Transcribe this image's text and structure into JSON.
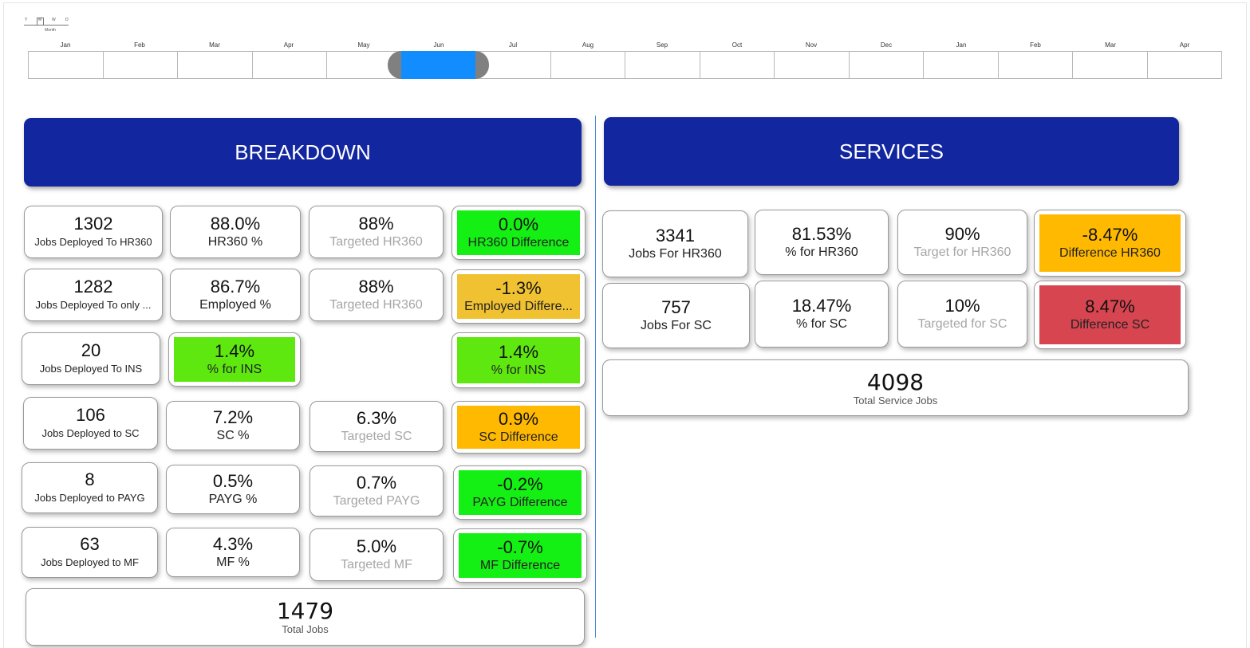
{
  "timeline": {
    "granularity": [
      "Y",
      "M",
      "W",
      "D"
    ],
    "granularity_caption": "Month",
    "months": [
      "Jan",
      "Feb",
      "Mar",
      "Apr",
      "May",
      "Jun",
      "Jul",
      "Aug",
      "Sep",
      "Oct",
      "Nov",
      "Dec",
      "Jan",
      "Feb",
      "Mar",
      "Apr"
    ],
    "selected_month": "Jun"
  },
  "breakdown": {
    "title": "BREAKDOWN",
    "cards": [
      {
        "value": "1302",
        "caption": "Jobs Deployed To HR360"
      },
      {
        "value": "88.0%",
        "caption": "HR360 %"
      },
      {
        "value": "88%",
        "caption": "Targeted HR360"
      },
      {
        "value": "0.0%",
        "caption": "HR360 Difference"
      },
      {
        "value": "1282",
        "caption": "Jobs Deployed To only ..."
      },
      {
        "value": "86.7%",
        "caption": "Employed %"
      },
      {
        "value": "88%",
        "caption": "Targeted HR360"
      },
      {
        "value": "-1.3%",
        "caption": "Employed Differe..."
      },
      {
        "value": "20",
        "caption": "Jobs Deployed To INS"
      },
      {
        "value": "1.4%",
        "caption": "% for INS"
      },
      {
        "value": "1.4%",
        "caption": "% for INS"
      },
      {
        "value": "106",
        "caption": "Jobs Deployed to SC"
      },
      {
        "value": "7.2%",
        "caption": "SC %"
      },
      {
        "value": "6.3%",
        "caption": "Targeted SC"
      },
      {
        "value": "0.9%",
        "caption": "SC Difference"
      },
      {
        "value": "8",
        "caption": "Jobs Deployed to PAYG"
      },
      {
        "value": "0.5%",
        "caption": "PAYG %"
      },
      {
        "value": "0.7%",
        "caption": "Targeted PAYG"
      },
      {
        "value": "-0.2%",
        "caption": "PAYG Difference"
      },
      {
        "value": "63",
        "caption": "Jobs Deployed to MF"
      },
      {
        "value": "4.3%",
        "caption": "MF %"
      },
      {
        "value": "5.0%",
        "caption": "Targeted MF"
      },
      {
        "value": "-0.7%",
        "caption": "MF Difference"
      }
    ],
    "total": {
      "value": "1479",
      "caption": "Total Jobs"
    }
  },
  "services": {
    "title": "SERVICES",
    "cards": [
      {
        "value": "3341",
        "caption": "Jobs For HR360"
      },
      {
        "value": "81.53%",
        "caption": "% for HR360"
      },
      {
        "value": "90%",
        "caption": "Target for HR360"
      },
      {
        "value": "-8.47%",
        "caption": "Difference HR360"
      },
      {
        "value": "757",
        "caption": "Jobs For SC"
      },
      {
        "value": "18.47%",
        "caption": "% for SC"
      },
      {
        "value": "10%",
        "caption": "Targeted for SC"
      },
      {
        "value": "8.47%",
        "caption": "Difference SC"
      }
    ],
    "total": {
      "value": "4098",
      "caption": "Total Service Jobs"
    }
  },
  "colors": {
    "banner": "#1226a0",
    "timeline_selection": "#118dff",
    "green": "#14f014",
    "lime": "#5ee80f",
    "amber": "#f0c232",
    "orange": "#ffb900",
    "red": "#d64550"
  }
}
